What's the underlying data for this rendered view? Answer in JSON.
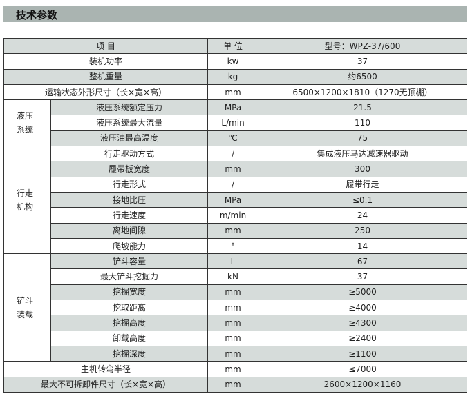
{
  "title": "技术参数",
  "header": {
    "item": "项 目",
    "unit": "单 位",
    "model": "型号：WPZ-37/600"
  },
  "top_rows": [
    {
      "item": "装机功率",
      "unit": "kw",
      "value": "37"
    },
    {
      "item": "整机重量",
      "unit": "kg",
      "value": "约6500"
    },
    {
      "item": "运输状态外形尺寸（长×宽×高）",
      "unit": "mm",
      "value": "6500×1200×1810（1270无顶棚）"
    }
  ],
  "groups": [
    {
      "label": "液压\n系统",
      "rows": [
        {
          "item": "液压系统额定压力",
          "unit": "MPa",
          "value": "21.5"
        },
        {
          "item": "液压系统最大流量",
          "unit": "L/min",
          "value": "110"
        },
        {
          "item": "液压油最高温度",
          "unit": "℃",
          "value": "75"
        }
      ]
    },
    {
      "label": "行走\n机构",
      "rows": [
        {
          "item": "行走驱动方式",
          "unit": "/",
          "value": "集成液压马达减速器驱动"
        },
        {
          "item": "履带板宽度",
          "unit": "mm",
          "value": "300"
        },
        {
          "item": "行走形式",
          "unit": "/",
          "value": "履带行走"
        },
        {
          "item": "接地比压",
          "unit": "MPa",
          "value": "≤0.1"
        },
        {
          "item": "行走速度",
          "unit": "m/min",
          "value": "24"
        },
        {
          "item": "离地间隙",
          "unit": "mm",
          "value": "250"
        },
        {
          "item": "爬坡能力",
          "unit": "°",
          "value": "14"
        }
      ]
    },
    {
      "label": "铲斗\n装载",
      "rows": [
        {
          "item": "铲斗容量",
          "unit": "L",
          "value": "67"
        },
        {
          "item": "最大铲斗挖掘力",
          "unit": "kN",
          "value": "37"
        },
        {
          "item": "挖掘宽度",
          "unit": "mm",
          "value": "≥5000"
        },
        {
          "item": "挖取距离",
          "unit": "mm",
          "value": "≥4000"
        },
        {
          "item": "挖掘高度",
          "unit": "mm",
          "value": "≥4300"
        },
        {
          "item": "卸载高度",
          "unit": "mm",
          "value": "≥2400"
        },
        {
          "item": "挖掘深度",
          "unit": "mm",
          "value": "≥1100"
        }
      ]
    }
  ],
  "bottom_rows": [
    {
      "item": "主机转弯半径",
      "unit": "mm",
      "value": "≤7000"
    },
    {
      "item": "最大不可拆卸件尺寸（长×宽×高）",
      "unit": "mm",
      "value": "2600×1200×1160"
    }
  ]
}
